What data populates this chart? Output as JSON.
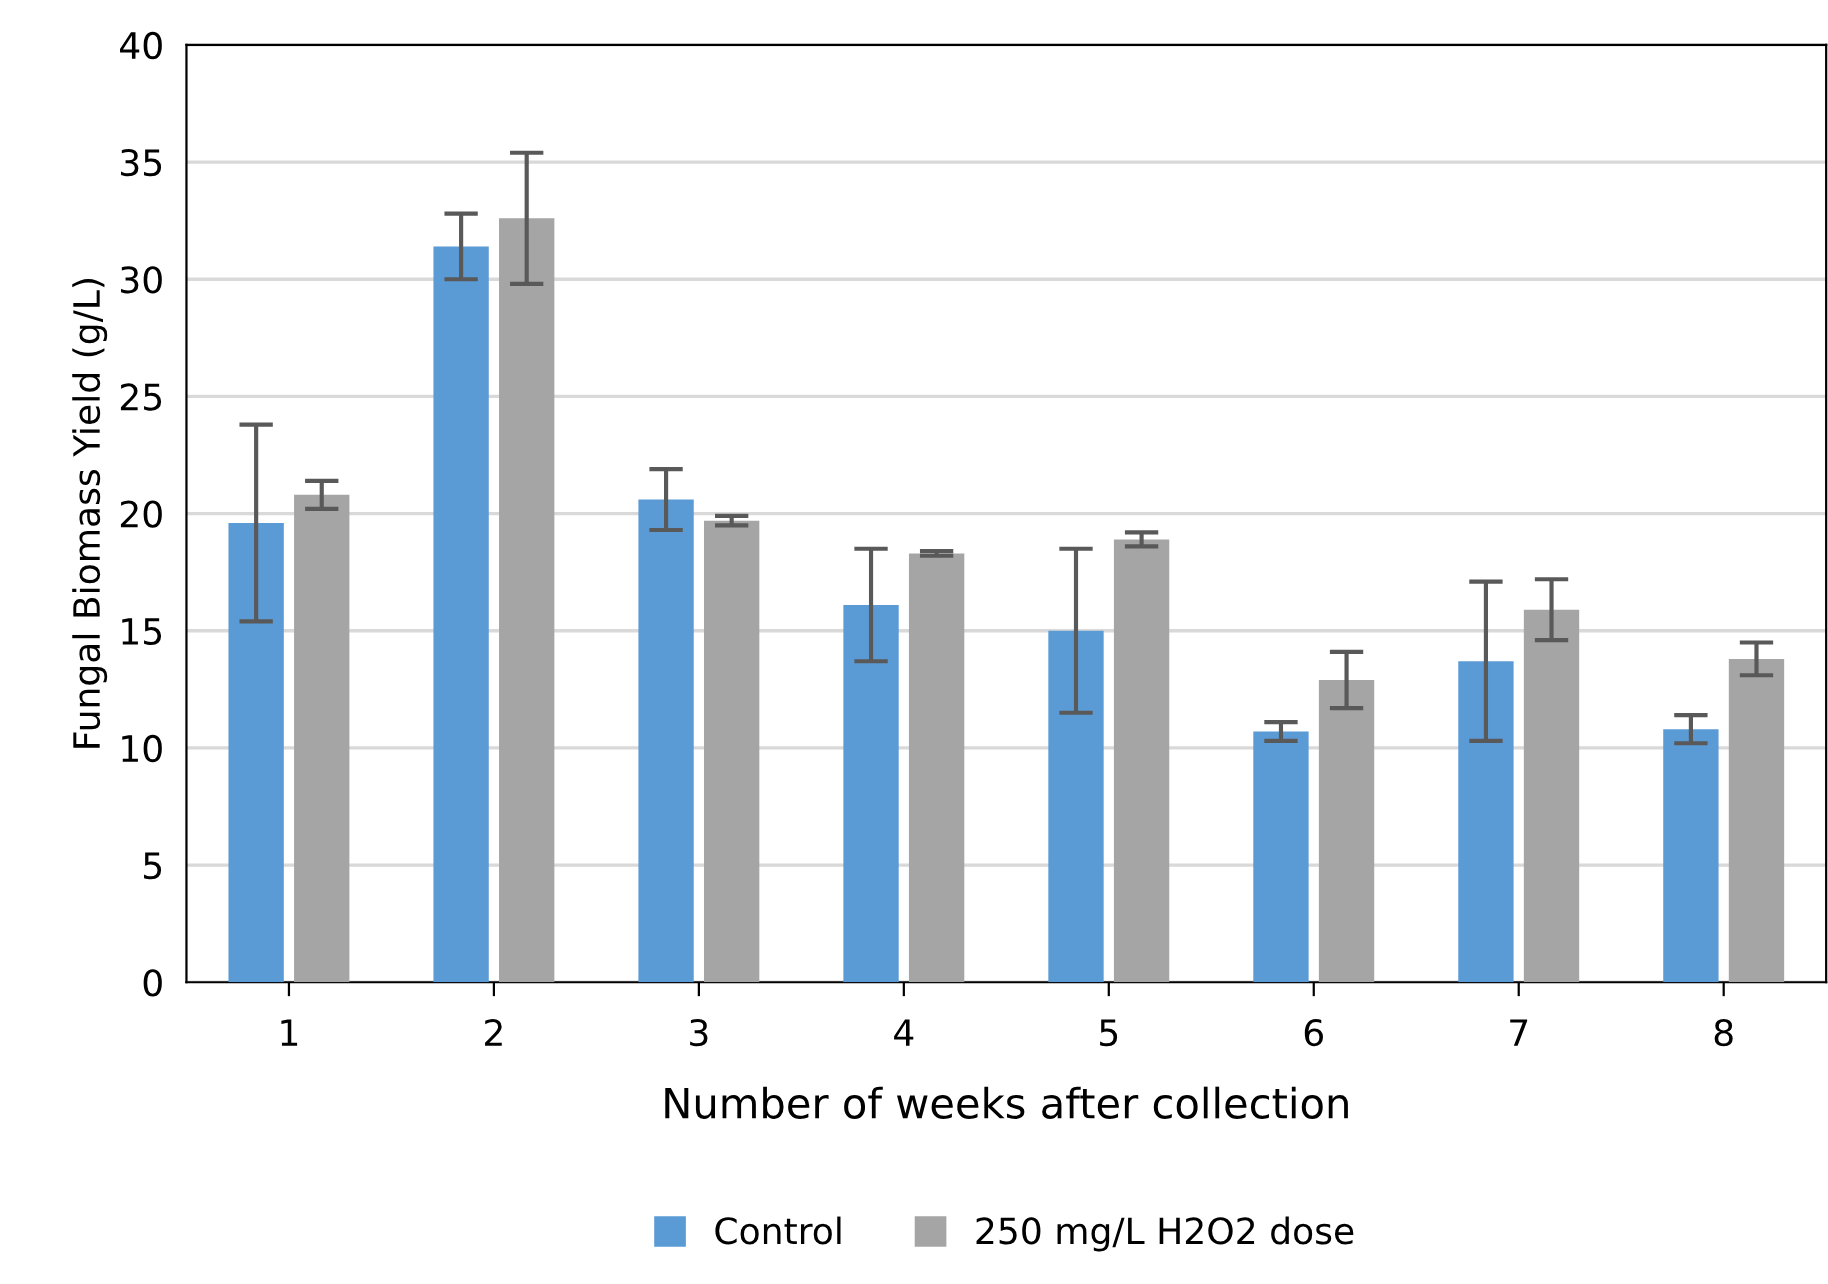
{
  "chart_data": {
    "type": "bar",
    "xlabel": "Number of weeks after collection",
    "ylabel": "Fungal Biomass Yield (g/L)",
    "categories": [
      "1",
      "2",
      "3",
      "4",
      "5",
      "6",
      "7",
      "8"
    ],
    "series": [
      {
        "name": "Control",
        "color": "#5b9bd5",
        "values": [
          19.6,
          31.4,
          20.6,
          16.1,
          15.0,
          10.7,
          13.7,
          10.8
        ],
        "errors": [
          4.2,
          1.4,
          1.3,
          2.4,
          3.5,
          0.4,
          3.4,
          0.6
        ]
      },
      {
        "name": "250 mg/L H2O2 dose",
        "color": "#a5a5a5",
        "values": [
          20.8,
          32.6,
          19.7,
          18.3,
          18.9,
          12.9,
          15.9,
          13.8
        ],
        "errors": [
          0.6,
          2.8,
          0.2,
          0.1,
          0.3,
          1.2,
          1.3,
          0.7
        ]
      }
    ],
    "ylim": [
      0,
      40
    ],
    "yticks": [
      0,
      5,
      10,
      15,
      20,
      25,
      30,
      35,
      40
    ],
    "grid": "y",
    "legend": "bottom"
  }
}
